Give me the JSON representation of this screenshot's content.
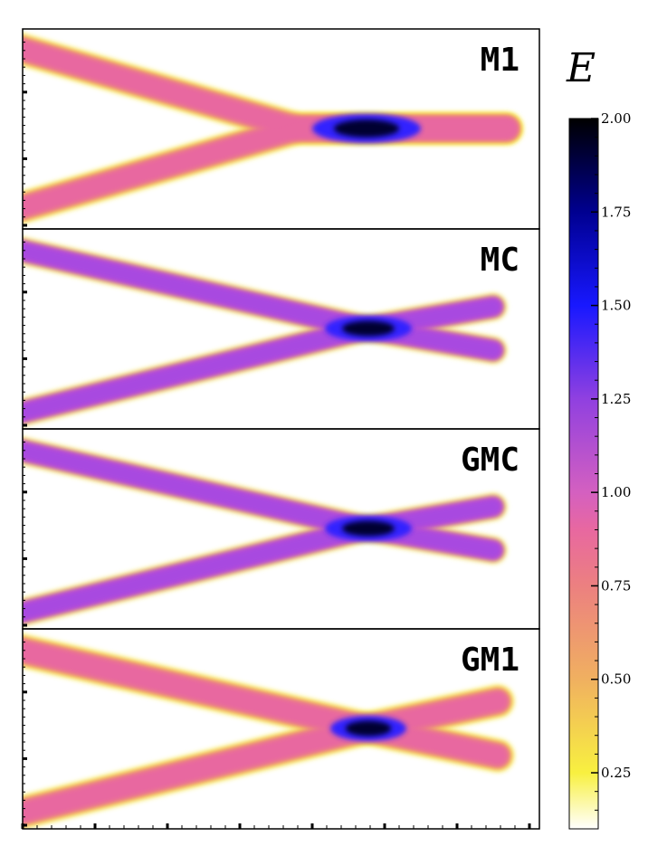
{
  "chart_data": {
    "type": "heatmap",
    "title": "",
    "xlabel": "",
    "ylabel": "",
    "panels": [
      {
        "label": "M1",
        "shape": "merge"
      },
      {
        "label": "MC",
        "shape": "cross"
      },
      {
        "label": "GMC",
        "shape": "cross"
      },
      {
        "label": "GM1",
        "shape": "cross-wide"
      }
    ],
    "colorbar": {
      "label": "E",
      "range": [
        0.1,
        2.0
      ],
      "ticks": [
        "2.00",
        "1.75",
        "1.50",
        "1.25",
        "1.00",
        "0.75",
        "0.50",
        "0.25"
      ],
      "tick_values": [
        2.0,
        1.75,
        1.5,
        1.25,
        1.0,
        0.75,
        0.5,
        0.25
      ],
      "colormap": [
        {
          "v": 0.1,
          "c": "#ffffff"
        },
        {
          "v": 0.25,
          "c": "#f8f040"
        },
        {
          "v": 0.5,
          "c": "#f0b060"
        },
        {
          "v": 0.75,
          "c": "#ec8080"
        },
        {
          "v": 0.9,
          "c": "#e868a0"
        },
        {
          "v": 1.0,
          "c": "#d460c0"
        },
        {
          "v": 1.25,
          "c": "#9040e0"
        },
        {
          "v": 1.5,
          "c": "#1818ff"
        },
        {
          "v": 1.75,
          "c": "#000090"
        },
        {
          "v": 2.0,
          "c": "#000000"
        }
      ]
    }
  }
}
